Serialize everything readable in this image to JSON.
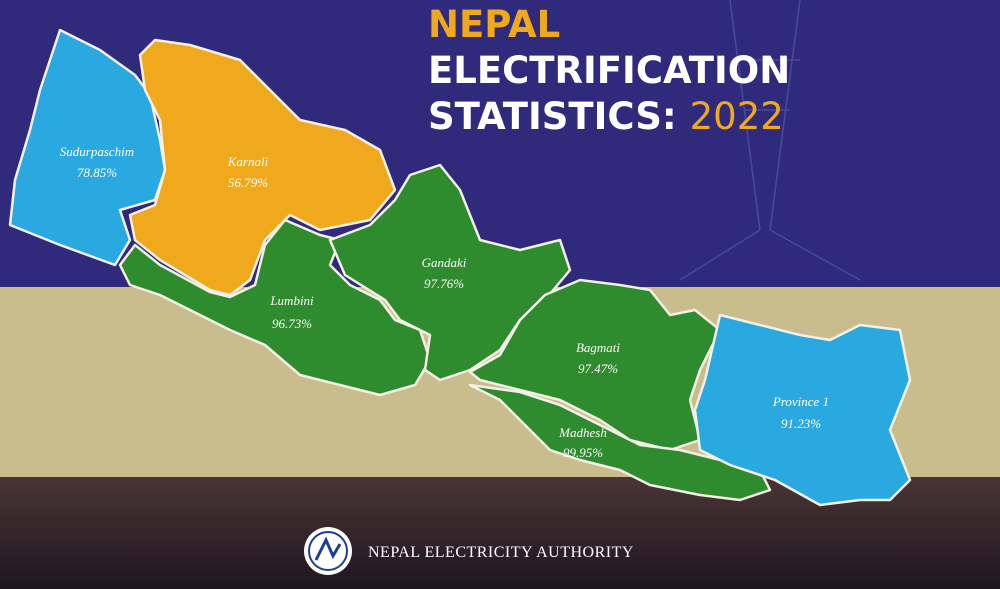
{
  "title": {
    "line1": "NEPAL",
    "line2": "ELECTRIFICATION",
    "line3": "STATISTICS:",
    "year": "2022"
  },
  "provinces": [
    {
      "name": "Sudurpaschim",
      "label": "78.85%"
    },
    {
      "name": "Karnali",
      "label": "56.79%"
    },
    {
      "name": "Lumbini",
      "label": "96.73%"
    },
    {
      "name": "Gandaki",
      "label": "97.76%"
    },
    {
      "name": "Bagmati",
      "label": "97.47%"
    },
    {
      "name": "Madhesh",
      "label": "99.95%"
    },
    {
      "name": "Province 1",
      "label": "91.23%"
    }
  ],
  "footer": {
    "organization": "NEPAL ELECTRICITY AUTHORITY"
  }
}
